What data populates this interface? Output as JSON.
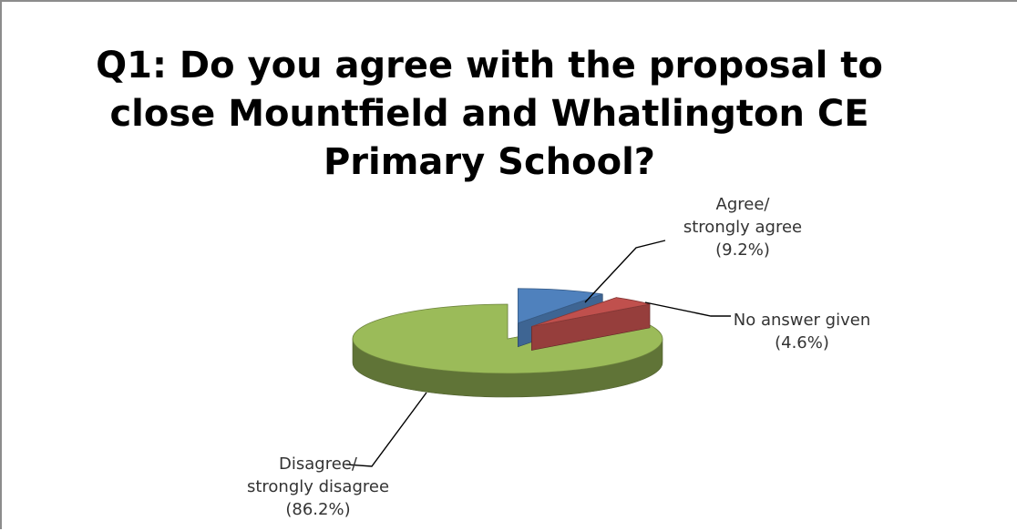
{
  "chart_data": {
    "type": "pie",
    "title_lines": [
      "Q1: Do you agree with the proposal to",
      "close Mountfield and Whatlington CE",
      "Primary School?"
    ],
    "slices": [
      {
        "label_lines": [
          "Agree/",
          "strongly agree",
          "(9.2%)"
        ],
        "value": 9.2,
        "color": "#4f81bd"
      },
      {
        "label_lines": [
          "No answer given",
          "(4.6%)"
        ],
        "value": 4.6,
        "color": "#c0504d"
      },
      {
        "label_lines": [
          "Disagree/",
          "strongly disagree",
          "(86.2%)"
        ],
        "value": 86.2,
        "color": "#9bbb59"
      }
    ],
    "legend": "none",
    "style": "3d exploded pie"
  }
}
